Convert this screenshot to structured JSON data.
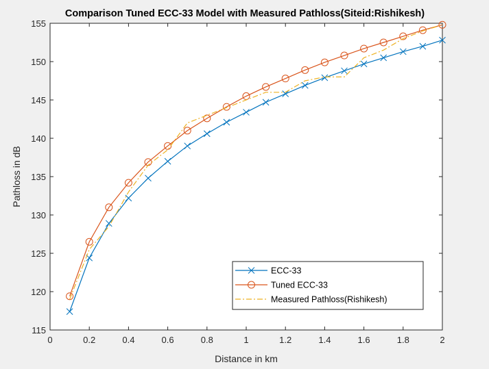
{
  "chart_data": {
    "type": "line",
    "title": "Comparison Tuned ECC-33 Model with Measured Pathloss(Siteid:Rishikesh)",
    "xlabel": "Distance in km",
    "ylabel": "Pathloss in dB",
    "xlim": [
      0,
      2
    ],
    "ylim": [
      115,
      155
    ],
    "xticks": [
      0,
      0.2,
      0.4,
      0.6,
      0.8,
      1,
      1.2,
      1.4,
      1.6,
      1.8,
      2
    ],
    "xtick_labels": [
      "0",
      "0.2",
      "0.4",
      "0.6",
      "0.8",
      "1",
      "1.2",
      "1.4",
      "1.6",
      "1.8",
      "2"
    ],
    "yticks": [
      115,
      120,
      125,
      130,
      135,
      140,
      145,
      150,
      155
    ],
    "ytick_labels": [
      "115",
      "120",
      "125",
      "130",
      "135",
      "140",
      "145",
      "150",
      "155"
    ],
    "grid": false,
    "legend_position": "bottom-right",
    "x": [
      0.1,
      0.2,
      0.3,
      0.4,
      0.5,
      0.6,
      0.7,
      0.8,
      0.9,
      1.0,
      1.1,
      1.2,
      1.3,
      1.4,
      1.5,
      1.6,
      1.7,
      1.8,
      1.9,
      2.0
    ],
    "series": [
      {
        "name": "ECC-33",
        "color": "#0072bd",
        "marker": "x",
        "line_style": "solid",
        "values": [
          117.4,
          124.4,
          128.9,
          132.2,
          134.8,
          137.0,
          139.0,
          140.6,
          142.1,
          143.4,
          144.7,
          145.8,
          146.9,
          147.9,
          148.8,
          149.7,
          150.5,
          151.3,
          152.0,
          152.8
        ]
      },
      {
        "name": "Tuned ECC-33",
        "color": "#d95319",
        "marker": "o",
        "line_style": "solid",
        "values": [
          119.4,
          126.5,
          131.0,
          134.2,
          136.9,
          139.0,
          141.0,
          142.6,
          144.1,
          145.5,
          146.7,
          147.8,
          148.9,
          149.9,
          150.8,
          151.7,
          152.5,
          153.3,
          154.1,
          154.8
        ]
      },
      {
        "name": "Measured Pathloss(Rishikesh)",
        "color": "#edb120",
        "marker": "none",
        "line_style": "dash-dot",
        "values": [
          119.0,
          125.5,
          128.5,
          133.0,
          136.5,
          138.5,
          142.0,
          143.0,
          144.0,
          145.0,
          146.0,
          146.0,
          147.5,
          148.0,
          148.0,
          150.5,
          151.5,
          153.0,
          154.0,
          154.8
        ]
      }
    ]
  }
}
